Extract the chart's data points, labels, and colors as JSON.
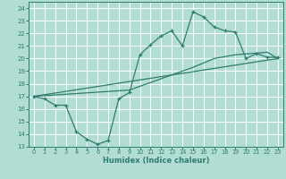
{
  "xlabel": "Humidex (Indice chaleur)",
  "xlim_min": -0.5,
  "xlim_max": 23.5,
  "ylim_min": 13,
  "ylim_max": 24.5,
  "xticks": [
    0,
    1,
    2,
    3,
    4,
    5,
    6,
    7,
    8,
    9,
    10,
    11,
    12,
    13,
    14,
    15,
    16,
    17,
    18,
    19,
    20,
    21,
    22,
    23
  ],
  "yticks": [
    13,
    14,
    15,
    16,
    17,
    18,
    19,
    20,
    21,
    22,
    23,
    24
  ],
  "color": "#2e7d6e",
  "bg_color": "#b2ddd4",
  "grid_color": "#ffffff",
  "line1_x": [
    0,
    1,
    2,
    3,
    4,
    5,
    6,
    7,
    8,
    9,
    10,
    11,
    12,
    13,
    14,
    15,
    16,
    17,
    18,
    19,
    20,
    21,
    22,
    23
  ],
  "line1_y": [
    17.0,
    16.8,
    16.3,
    16.3,
    14.2,
    13.6,
    13.2,
    13.5,
    16.8,
    17.3,
    20.3,
    21.1,
    21.8,
    22.2,
    21.0,
    23.7,
    23.3,
    22.5,
    22.2,
    22.1,
    20.0,
    20.4,
    20.1,
    20.1
  ],
  "line2_x": [
    0,
    23
  ],
  "line2_y": [
    17.0,
    20.0
  ],
  "line3_x": [
    0,
    9,
    15,
    17,
    19,
    22,
    23
  ],
  "line3_y": [
    17.0,
    17.5,
    19.3,
    20.0,
    20.3,
    20.5,
    20.0
  ]
}
